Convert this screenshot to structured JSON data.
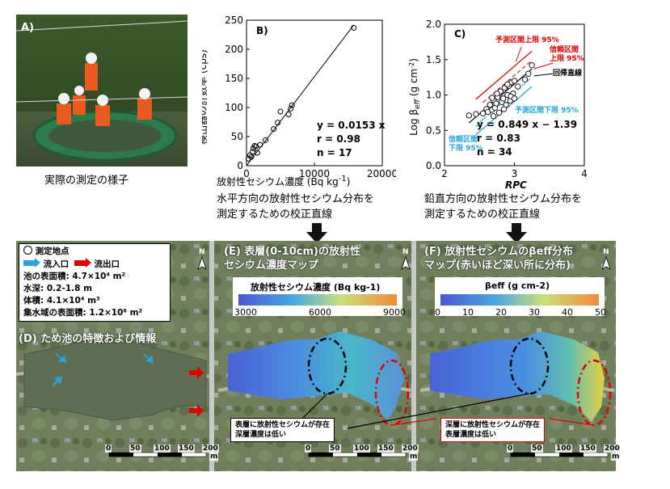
{
  "panel_a": {
    "label": "A)",
    "caption": "実際の測定の様子"
  },
  "panel_b": {
    "label": "B)",
    "caption_line1": "水平方向の放射性セシウム分布を",
    "caption_line2": "測定するための校正直線",
    "stats": {
      "eq": "y = 0.0153  x",
      "r": "r = 0.98",
      "n": "n = 17"
    }
  },
  "panel_c": {
    "label": "C)",
    "caption_line1": "鉛直方向の放射性セシウム分布を",
    "caption_line2": "測定するための校正直線",
    "stats": {
      "eq": "y = 0.849  x − 1.39",
      "r": "r = 0.83",
      "n": "n = 34"
    },
    "annotations": {
      "pred_upper": "予測区間上限 95%",
      "conf_upper_1": "信頼区間",
      "conf_upper_2": "上限 95%",
      "regression": "回帰直線",
      "pred_lower": "予測区間下限 95%",
      "conf_lower_1": "信頼区",
      "conf_lower_2": "間",
      "conf_lower_3": "下限 95%"
    }
  },
  "chart_data": [
    {
      "type": "scatter",
      "panel": "B",
      "xlabel": "放射性セシウム濃度 (Bq kg-1)",
      "ylabel": "検出器の計数率 (cps)",
      "xlim": [
        0,
        20000
      ],
      "ylim": [
        0,
        250
      ],
      "xticks": [
        0,
        10000,
        20000
      ],
      "yticks": [
        0,
        50,
        100,
        150,
        200,
        250
      ],
      "points": [
        [
          300,
          12
        ],
        [
          500,
          18
        ],
        [
          700,
          15
        ],
        [
          900,
          24
        ],
        [
          1000,
          30
        ],
        [
          1200,
          34
        ],
        [
          1400,
          33
        ],
        [
          1600,
          22
        ],
        [
          2000,
          36
        ],
        [
          2800,
          44
        ],
        [
          4000,
          63
        ],
        [
          4600,
          74
        ],
        [
          5000,
          93
        ],
        [
          6200,
          88
        ],
        [
          6500,
          98
        ],
        [
          6700,
          104
        ],
        [
          15800,
          237
        ]
      ],
      "fit": {
        "slope": 0.0153,
        "intercept": 0
      }
    },
    {
      "type": "scatter",
      "panel": "C",
      "xlabel": "RPC",
      "ylabel": "Log βeff (g cm-2)",
      "xlim": [
        2,
        4
      ],
      "ylim": [
        0,
        2.0
      ],
      "xticks": [
        2,
        3,
        4
      ],
      "yticks": [
        0,
        0.5,
        1.0,
        1.5,
        2.0
      ],
      "points": [
        [
          2.35,
          0.71
        ],
        [
          2.45,
          0.73
        ],
        [
          2.55,
          0.74
        ],
        [
          2.6,
          0.8
        ],
        [
          2.62,
          0.76
        ],
        [
          2.65,
          0.86
        ],
        [
          2.68,
          0.79
        ],
        [
          2.7,
          0.93
        ],
        [
          2.72,
          0.82
        ],
        [
          2.74,
          0.88
        ],
        [
          2.76,
          0.97
        ],
        [
          2.78,
          0.75
        ],
        [
          2.8,
          1.05
        ],
        [
          2.82,
          0.9
        ],
        [
          2.84,
          0.95
        ],
        [
          2.86,
          1.1
        ],
        [
          2.88,
          0.86
        ],
        [
          2.9,
          1.0
        ],
        [
          2.92,
          1.13
        ],
        [
          2.94,
          0.92
        ],
        [
          2.96,
          1.18
        ],
        [
          2.98,
          1.02
        ],
        [
          3.0,
          1.2
        ],
        [
          2.68,
          0.96
        ],
        [
          2.75,
          1.02
        ],
        [
          2.85,
          0.8
        ],
        [
          2.9,
          1.15
        ],
        [
          2.95,
          0.98
        ],
        [
          3.05,
          1.12
        ],
        [
          3.15,
          1.22
        ],
        [
          3.2,
          1.3
        ],
        [
          3.25,
          1.42
        ],
        [
          2.7,
          0.7
        ],
        [
          3.0,
          0.95
        ]
      ],
      "fit": {
        "slope": 0.849,
        "intercept": -1.39
      },
      "colors": {
        "prediction_upper": "#e00000",
        "confidence": "#e00000",
        "prediction_lower": "#29a3d9",
        "regression": "#000000"
      }
    }
  ],
  "panel_d": {
    "legend": {
      "measure_point": "測定地点",
      "inflow": "流入口",
      "outflow": "流出口",
      "area": "池の表面積: 4.7×10⁴ m²",
      "depth": "水深: 0.2-1.8 m",
      "volume": "体積: 4.1×10⁴ m³",
      "catchment": "集水域の表面積: 1.2×10⁶ m²"
    },
    "title": "(D) ため池の特徴および情報"
  },
  "panel_e": {
    "title_line1": "(E) 表層(0-10cm)の放射性",
    "title_line2": "セシウム濃度マップ",
    "colorbar_title": "放射性セシウム濃度 (Bq kg-1)",
    "colorbar_ticks": [
      "3000",
      "6000",
      "9000"
    ],
    "annotation_line1": "表層に放射性セシウムが存在",
    "annotation_line2": "深層濃度は低い"
  },
  "panel_f": {
    "title_line1": "(F) 放射性セシウムのβeff分布",
    "title_line2": "マップ(赤いほど深い所に分布)",
    "colorbar_title": "βeff (g cm-2)",
    "colorbar_ticks": [
      "0",
      "10",
      "20",
      "30",
      "40",
      "50"
    ],
    "annotation_line1": "深層に放射性セシウムが存在",
    "annotation_line2": "表層濃度は低い"
  },
  "scalebar": {
    "ticks": [
      "0",
      "50",
      "100",
      "150",
      "200"
    ],
    "unit": "m"
  },
  "north": "N",
  "colors": {
    "inflow": "#29a3d9",
    "outflow": "#e00000",
    "map_bg": "#6f7f5c"
  }
}
